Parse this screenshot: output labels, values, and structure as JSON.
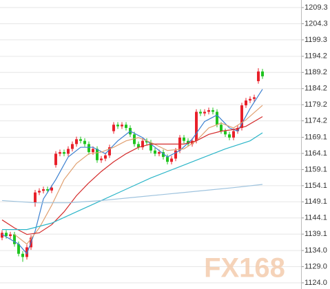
{
  "chart_data": {
    "type": "candlestick",
    "watermark": "FX168",
    "ylim": [
      1122.08,
      1211.65
    ],
    "yticks": [
      1209.3,
      1204.3,
      1199.3,
      1194.2,
      1189.2,
      1184.2,
      1179.2,
      1174.2,
      1169.1,
      1164.1,
      1159.1,
      1154.1,
      1149.1,
      1144.1,
      1139.1,
      {
        "value": 1134.0,
        "label": "1134.0"
      },
      {
        "value": 1129.0,
        "label": "1129.0"
      },
      {
        "value": 1124.0,
        "label": "1124.0"
      }
    ],
    "grid": true,
    "up_color": "#e8202a",
    "down_color": "#1fc41f",
    "open": [
      1138.0,
      1139.5,
      1138.5,
      1139.0,
      1136.0,
      1133.0,
      1132.0,
      1135.0,
      1148.8,
      1152.0,
      1152.5,
      1153.0,
      1152.6,
      1160.5,
      1164.0,
      1164.5,
      1164.0,
      1165.5,
      1167.0,
      1168.5,
      1168.0,
      1167.0,
      1164.5,
      1165.5,
      1162.0,
      1162.5,
      1163.5,
      1171.0,
      1173.0,
      1172.5,
      1173.0,
      1172.0,
      1170.0,
      1167.0,
      1166.0,
      1168.0,
      1167.5,
      1165.0,
      1164.0,
      1164.5,
      1163.0,
      1161.5,
      1162.5,
      1165.0,
      1169.0,
      1168.0,
      1167.0,
      1168.0,
      1177.0,
      1176.5,
      1177.0,
      1177.5,
      1177.0,
      1173.0,
      1171.0,
      1170.0,
      1169.0,
      1171.0,
      1172.0,
      1179.0,
      1180.5,
      1181.0,
      1186.5,
      1189.5
    ],
    "high": [
      1140.3,
      1140.3,
      1139.8,
      1139.8,
      1136.8,
      1133.8,
      1135.8,
      1138.8,
      1152.8,
      1153.3,
      1153.8,
      1153.8,
      1154.3,
      1164.8,
      1165.3,
      1165.3,
      1166.3,
      1167.8,
      1169.3,
      1169.3,
      1168.8,
      1167.8,
      1166.3,
      1166.3,
      1163.3,
      1164.3,
      1166.8,
      1173.8,
      1173.8,
      1173.8,
      1173.8,
      1172.8,
      1170.8,
      1167.8,
      1168.8,
      1168.8,
      1168.3,
      1165.8,
      1165.3,
      1165.3,
      1163.8,
      1163.3,
      1165.8,
      1169.8,
      1169.8,
      1168.8,
      1168.8,
      1177.8,
      1177.8,
      1177.8,
      1178.3,
      1178.3,
      1177.8,
      1173.8,
      1171.8,
      1170.8,
      1171.8,
      1172.8,
      1179.8,
      1181.3,
      1181.8,
      1182.3,
      1190.5,
      1190.3
    ],
    "low": [
      1137.2,
      1137.7,
      1137.7,
      1135.2,
      1132.2,
      1130.5,
      1131.2,
      1134.2,
      1147.6,
      1151.2,
      1151.7,
      1151.8,
      1151.8,
      1159.7,
      1163.2,
      1163.2,
      1163.2,
      1164.7,
      1166.2,
      1167.2,
      1166.2,
      1163.7,
      1163.7,
      1161.2,
      1161.2,
      1161.7,
      1162.7,
      1170.2,
      1171.7,
      1171.7,
      1171.2,
      1169.2,
      1166.2,
      1165.2,
      1165.2,
      1166.7,
      1164.2,
      1163.2,
      1163.2,
      1162.2,
      1160.7,
      1160.7,
      1161.7,
      1164.2,
      1167.2,
      1166.2,
      1166.2,
      1167.2,
      1175.7,
      1175.7,
      1176.2,
      1176.2,
      1172.2,
      1170.2,
      1169.2,
      1168.2,
      1168.2,
      1170.2,
      1171.2,
      1178.2,
      1179.7,
      1180.2,
      1185.7,
      1187.2
    ],
    "close": [
      1139.5,
      1138.5,
      1139.0,
      1136.0,
      1133.0,
      1132.0,
      1135.0,
      1138.0,
      1152.0,
      1152.5,
      1153.0,
      1152.6,
      1153.5,
      1164.0,
      1164.5,
      1164.0,
      1165.5,
      1167.0,
      1168.5,
      1168.0,
      1167.0,
      1164.5,
      1165.5,
      1162.0,
      1162.5,
      1163.5,
      1166.0,
      1173.0,
      1172.5,
      1173.0,
      1172.0,
      1170.0,
      1167.0,
      1166.0,
      1168.0,
      1167.5,
      1165.0,
      1164.0,
      1164.5,
      1163.0,
      1161.5,
      1162.5,
      1165.0,
      1169.0,
      1168.0,
      1167.0,
      1168.0,
      1177.0,
      1176.5,
      1177.0,
      1177.5,
      1177.0,
      1173.0,
      1171.0,
      1170.0,
      1169.0,
      1171.0,
      1172.0,
      1179.0,
      1180.5,
      1181.0,
      1181.5,
      1189.5,
      1188.0
    ],
    "lines": [
      {
        "color": "#3a7fd0",
        "x": [
          0,
          4,
          6,
          8,
          10,
          13,
          16,
          19,
          22,
          25,
          28,
          31,
          34,
          37,
          40,
          43,
          46,
          49,
          52,
          55,
          57,
          60,
          63
        ],
        "values": [
          1139,
          1136,
          1133,
          1140,
          1150,
          1156,
          1163,
          1166,
          1166,
          1164,
          1168,
          1171,
          1169,
          1166,
          1163,
          1165,
          1168.5,
          1174,
          1176,
          1172,
          1171,
          1178,
          1184
        ]
      },
      {
        "color": "#e0a070",
        "x": [
          3,
          6,
          9,
          12,
          15,
          18,
          21,
          24,
          27,
          30,
          33,
          36,
          40,
          44,
          47,
          50,
          53,
          56,
          59,
          63
        ],
        "values": [
          1139,
          1136,
          1141,
          1148,
          1156,
          1161,
          1164,
          1164.5,
          1166,
          1168,
          1169,
          1167.5,
          1165,
          1165.5,
          1168,
          1172,
          1173.5,
          1172,
          1174.5,
          1179
        ]
      },
      {
        "color": "#d42a2a",
        "x": [
          0,
          3,
          6,
          9,
          12,
          15,
          18,
          21,
          24,
          27,
          30,
          33,
          36,
          40,
          44,
          47,
          50,
          53,
          56,
          59,
          63
        ],
        "values": [
          1143.5,
          1141,
          1139,
          1139.5,
          1142,
          1146,
          1151,
          1155,
          1158.5,
          1161.5,
          1164,
          1166,
          1167,
          1167,
          1167,
          1168,
          1170,
          1171,
          1171.5,
          1172.5,
          1175.5
        ]
      },
      {
        "color": "#2bb5c8",
        "x": [
          0,
          6,
          12,
          18,
          24,
          30,
          36,
          42,
          48,
          54,
          60,
          63
        ],
        "values": [
          1140.5,
          1140.5,
          1142.5,
          1146,
          1149.5,
          1153,
          1156.5,
          1159.5,
          1162.5,
          1165.5,
          1168,
          1170.5
        ]
      },
      {
        "color": "#9ec3de",
        "x": [
          0,
          8,
          16,
          24,
          32,
          40,
          48,
          56,
          63
        ],
        "values": [
          1149.5,
          1148.8,
          1148.8,
          1149.5,
          1150.5,
          1151.5,
          1152.5,
          1153.5,
          1154.5
        ]
      }
    ]
  }
}
